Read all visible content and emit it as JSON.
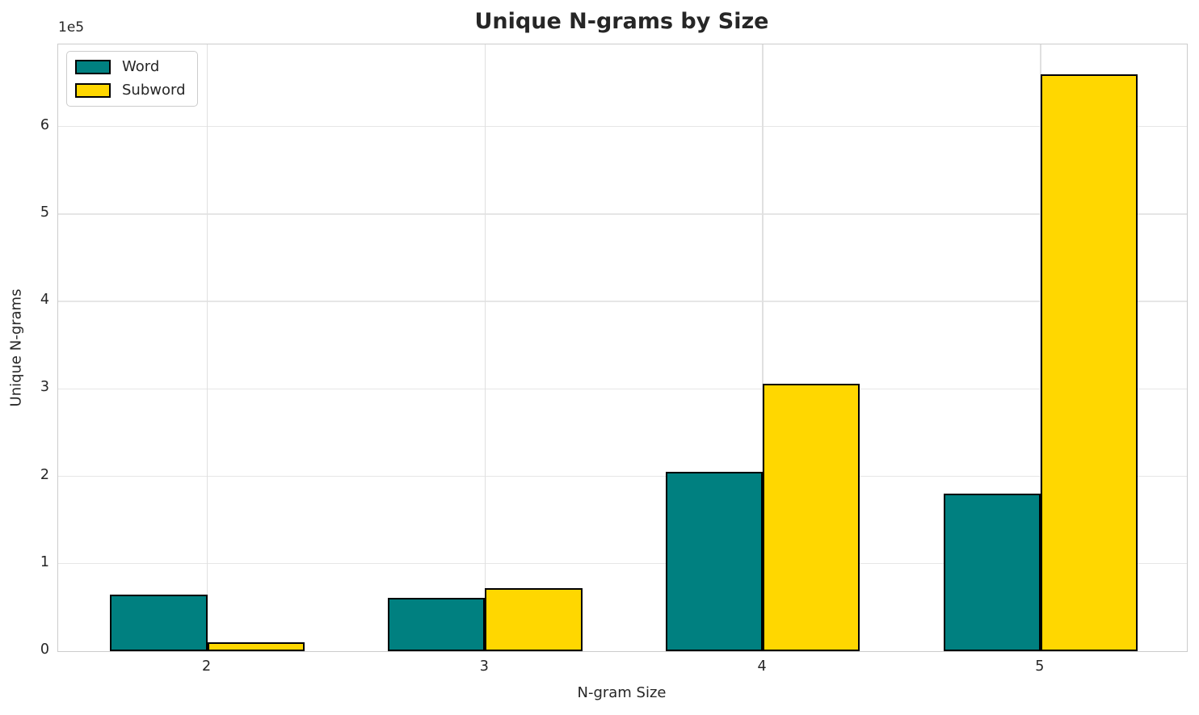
{
  "figure": {
    "title": "Unique N-grams by Size"
  },
  "chart_data": {
    "type": "bar",
    "title": "Unique N-grams by Size",
    "xlabel": "N-gram Size",
    "ylabel": "Unique N-grams",
    "categories": [
      "2",
      "3",
      "4",
      "5"
    ],
    "series": [
      {
        "name": "Word",
        "color": "#008080",
        "values": [
          65000,
          61000,
          205000,
          180000
        ]
      },
      {
        "name": "Subword",
        "color": "#FFD700",
        "values": [
          10000,
          72000,
          306000,
          660000
        ]
      }
    ],
    "bar_edge_color": "#000000",
    "ylim": [
      0,
      694000
    ],
    "yticks": [
      0,
      100000,
      200000,
      300000,
      400000,
      500000,
      600000
    ],
    "ytick_labels": [
      "0",
      "1",
      "2",
      "3",
      "4",
      "5",
      "6"
    ],
    "y_offset_label": "1e5",
    "grid": true,
    "legend": {
      "position": "upper left",
      "items": [
        "Word",
        "Subword"
      ]
    }
  }
}
